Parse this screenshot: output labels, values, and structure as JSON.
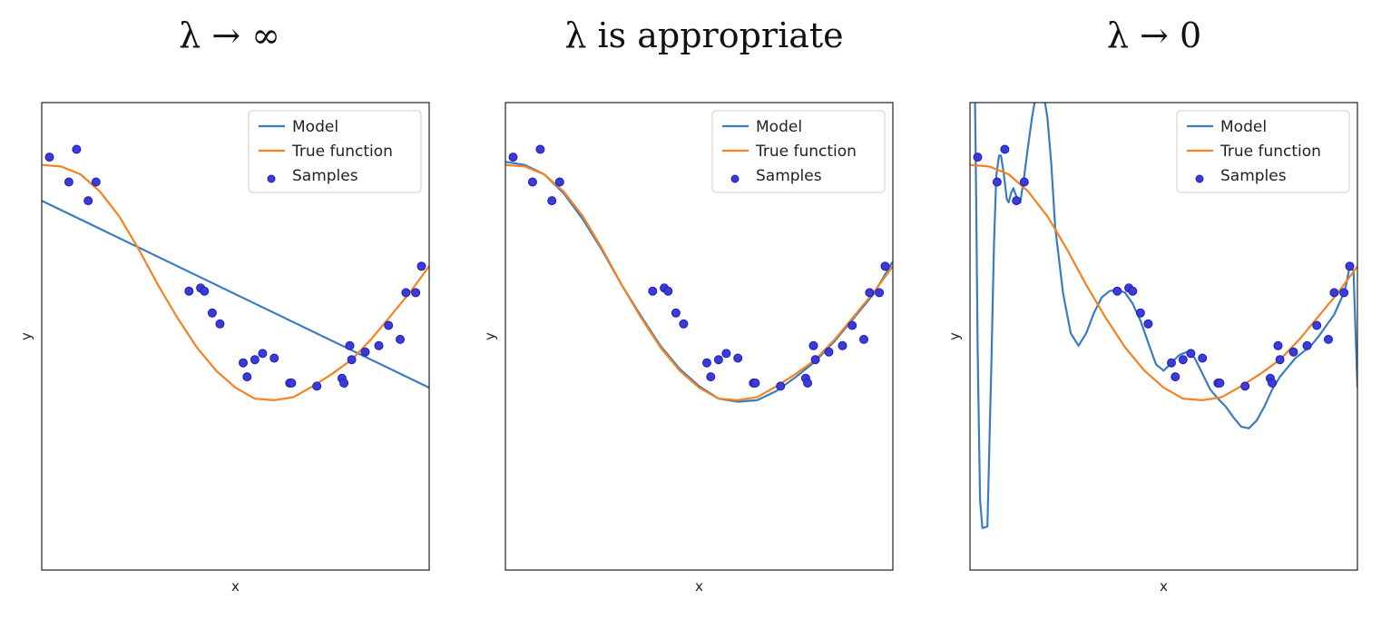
{
  "chart_data": [
    {
      "type": "line",
      "title": "λ → ∞",
      "xlabel": "x",
      "ylabel": "y",
      "xlim": [
        0,
        1
      ],
      "ylim": [
        -1.6,
        1.4
      ],
      "grid": false,
      "legend": {
        "position": "top-right",
        "entries": [
          "Model",
          "True function",
          "Samples"
        ]
      },
      "series": [
        {
          "name": "Model",
          "x": [
            0,
            1
          ],
          "y": [
            0.77,
            -0.43
          ]
        },
        {
          "name": "True function",
          "x": [
            0.0,
            0.05,
            0.1,
            0.15,
            0.2,
            0.25,
            0.3,
            0.35,
            0.4,
            0.45,
            0.5,
            0.55,
            0.6,
            0.65,
            0.7,
            0.75,
            0.8,
            0.85,
            0.9,
            0.95,
            1.0
          ],
          "y": [
            1.0,
            0.99,
            0.94,
            0.83,
            0.67,
            0.46,
            0.23,
            0.02,
            -0.17,
            -0.32,
            -0.43,
            -0.5,
            -0.51,
            -0.49,
            -0.42,
            -0.34,
            -0.25,
            -0.12,
            0.03,
            0.18,
            0.35
          ]
        }
      ],
      "samples": {
        "name": "Samples",
        "x": [
          0.02,
          0.07,
          0.09,
          0.12,
          0.14,
          0.38,
          0.41,
          0.42,
          0.44,
          0.46,
          0.52,
          0.53,
          0.55,
          0.57,
          0.6,
          0.64,
          0.645,
          0.71,
          0.775,
          0.78,
          0.795,
          0.8,
          0.835,
          0.87,
          0.895,
          0.925,
          0.94,
          0.965,
          0.98
        ],
        "y": [
          1.05,
          0.89,
          1.1,
          0.77,
          0.89,
          0.19,
          0.21,
          0.19,
          0.05,
          -0.02,
          -0.27,
          -0.36,
          -0.25,
          -0.21,
          -0.24,
          -0.4,
          -0.4,
          -0.42,
          -0.37,
          -0.4,
          -0.16,
          -0.25,
          -0.2,
          -0.16,
          -0.03,
          -0.12,
          0.18,
          0.18,
          0.35
        ]
      }
    },
    {
      "type": "line",
      "title": "λ  is appropriate",
      "xlabel": "x",
      "ylabel": "y",
      "xlim": [
        0,
        1
      ],
      "ylim": [
        -1.6,
        1.4
      ],
      "grid": false,
      "legend": {
        "position": "top-right",
        "entries": [
          "Model",
          "True function",
          "Samples"
        ]
      },
      "series": [
        {
          "name": "Model",
          "x": [
            0.0,
            0.05,
            0.1,
            0.15,
            0.2,
            0.25,
            0.3,
            0.35,
            0.4,
            0.45,
            0.5,
            0.55,
            0.6,
            0.65,
            0.7,
            0.75,
            0.8,
            0.85,
            0.9,
            0.95,
            1.0
          ],
          "y": [
            1.02,
            1.0,
            0.94,
            0.82,
            0.65,
            0.45,
            0.23,
            0.03,
            -0.16,
            -0.31,
            -0.42,
            -0.5,
            -0.52,
            -0.51,
            -0.45,
            -0.36,
            -0.26,
            -0.13,
            0.02,
            0.17,
            0.38
          ]
        },
        {
          "name": "True function",
          "x": [
            0.0,
            0.05,
            0.1,
            0.15,
            0.2,
            0.25,
            0.3,
            0.35,
            0.4,
            0.45,
            0.5,
            0.55,
            0.6,
            0.65,
            0.7,
            0.75,
            0.8,
            0.85,
            0.9,
            0.95,
            1.0
          ],
          "y": [
            1.0,
            0.99,
            0.94,
            0.83,
            0.67,
            0.46,
            0.23,
            0.02,
            -0.17,
            -0.32,
            -0.43,
            -0.5,
            -0.51,
            -0.49,
            -0.42,
            -0.34,
            -0.25,
            -0.12,
            0.03,
            0.18,
            0.35
          ]
        }
      ],
      "samples": {
        "name": "Samples",
        "x": [
          0.02,
          0.07,
          0.09,
          0.12,
          0.14,
          0.38,
          0.41,
          0.42,
          0.44,
          0.46,
          0.52,
          0.53,
          0.55,
          0.57,
          0.6,
          0.64,
          0.645,
          0.71,
          0.775,
          0.78,
          0.795,
          0.8,
          0.835,
          0.87,
          0.895,
          0.925,
          0.94,
          0.965,
          0.98
        ],
        "y": [
          1.05,
          0.89,
          1.1,
          0.77,
          0.89,
          0.19,
          0.21,
          0.19,
          0.05,
          -0.02,
          -0.27,
          -0.36,
          -0.25,
          -0.21,
          -0.24,
          -0.4,
          -0.4,
          -0.42,
          -0.37,
          -0.4,
          -0.16,
          -0.25,
          -0.2,
          -0.16,
          -0.03,
          -0.12,
          0.18,
          0.18,
          0.35
        ]
      }
    },
    {
      "type": "line",
      "title": "λ → 0",
      "xlabel": "x",
      "ylabel": "y",
      "xlim": [
        0,
        1
      ],
      "ylim": [
        -1.6,
        1.4
      ],
      "grid": false,
      "legend": {
        "position": "top-right",
        "entries": [
          "Model",
          "True function",
          "Samples"
        ]
      },
      "series": [
        {
          "name": "Model",
          "x": [
            0.013,
            0.016,
            0.02,
            0.026,
            0.032,
            0.045,
            0.055,
            0.062,
            0.068,
            0.075,
            0.08,
            0.087,
            0.095,
            0.1,
            0.106,
            0.112,
            0.118,
            0.124,
            0.13,
            0.14,
            0.15,
            0.16,
            0.17,
            0.18,
            0.19,
            0.2,
            0.21,
            0.22,
            0.24,
            0.26,
            0.28,
            0.3,
            0.32,
            0.34,
            0.36,
            0.38,
            0.4,
            0.42,
            0.44,
            0.46,
            0.48,
            0.5,
            0.52,
            0.54,
            0.56,
            0.58,
            0.6,
            0.62,
            0.64,
            0.66,
            0.68,
            0.7,
            0.72,
            0.74,
            0.76,
            0.78,
            0.8,
            0.82,
            0.84,
            0.86,
            0.88,
            0.9,
            0.92,
            0.94,
            0.96,
            0.97,
            0.98,
            0.99,
            1.0
          ],
          "y": [
            1.4,
            0.8,
            -0.2,
            -1.15,
            -1.33,
            -1.32,
            -0.3,
            0.5,
            0.93,
            1.06,
            1.06,
            0.95,
            0.78,
            0.76,
            0.82,
            0.85,
            0.81,
            0.77,
            0.76,
            0.93,
            1.12,
            1.3,
            1.45,
            1.5,
            1.46,
            1.3,
            1.0,
            0.6,
            0.18,
            -0.08,
            -0.16,
            -0.08,
            0.05,
            0.15,
            0.19,
            0.2,
            0.18,
            0.11,
            0.0,
            -0.14,
            -0.28,
            -0.32,
            -0.27,
            -0.22,
            -0.2,
            -0.24,
            -0.34,
            -0.44,
            -0.5,
            -0.55,
            -0.62,
            -0.68,
            -0.69,
            -0.64,
            -0.55,
            -0.44,
            -0.36,
            -0.3,
            -0.24,
            -0.2,
            -0.16,
            -0.1,
            -0.03,
            0.04,
            0.15,
            0.22,
            0.35,
            0.32,
            -0.43
          ]
        },
        {
          "name": "True function",
          "x": [
            0.0,
            0.05,
            0.1,
            0.15,
            0.2,
            0.25,
            0.3,
            0.35,
            0.4,
            0.45,
            0.5,
            0.55,
            0.6,
            0.65,
            0.7,
            0.75,
            0.8,
            0.85,
            0.9,
            0.95,
            1.0
          ],
          "y": [
            1.0,
            0.99,
            0.94,
            0.83,
            0.67,
            0.46,
            0.23,
            0.02,
            -0.17,
            -0.32,
            -0.43,
            -0.5,
            -0.51,
            -0.49,
            -0.42,
            -0.34,
            -0.25,
            -0.12,
            0.03,
            0.18,
            0.35
          ]
        }
      ],
      "samples": {
        "name": "Samples",
        "x": [
          0.02,
          0.07,
          0.09,
          0.12,
          0.14,
          0.38,
          0.41,
          0.42,
          0.44,
          0.46,
          0.52,
          0.53,
          0.55,
          0.57,
          0.6,
          0.64,
          0.645,
          0.71,
          0.775,
          0.78,
          0.795,
          0.8,
          0.835,
          0.87,
          0.895,
          0.925,
          0.94,
          0.965,
          0.98
        ],
        "y": [
          1.05,
          0.89,
          1.1,
          0.77,
          0.89,
          0.19,
          0.21,
          0.19,
          0.05,
          -0.02,
          -0.27,
          -0.36,
          -0.25,
          -0.21,
          -0.24,
          -0.4,
          -0.4,
          -0.42,
          -0.37,
          -0.4,
          -0.16,
          -0.25,
          -0.2,
          -0.16,
          -0.03,
          -0.12,
          0.18,
          0.18,
          0.35
        ]
      }
    }
  ],
  "colors": {
    "model": "#3a7cc0",
    "true_function": "#f5821f",
    "samples_fill": "#3b3bd8",
    "samples_edge": "#1f1fb5",
    "frame": "#222222",
    "legend_border": "#cccccc"
  }
}
